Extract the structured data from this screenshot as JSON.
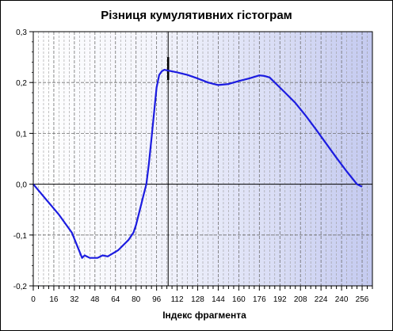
{
  "chart_data": {
    "type": "line",
    "title": "Різниця кумулятивних гістограм",
    "xlabel": "Індекс фрагмента",
    "ylabel": "",
    "xlim": [
      0,
      264
    ],
    "ylim": [
      -0.2,
      0.3
    ],
    "x_ticks": [
      "0",
      "16",
      "32",
      "48",
      "64",
      "80",
      "96",
      "112",
      "128",
      "144",
      "160",
      "176",
      "192",
      "208",
      "224",
      "240",
      "256"
    ],
    "x_tick_values": [
      0,
      16,
      32,
      48,
      64,
      80,
      96,
      112,
      128,
      144,
      160,
      176,
      192,
      208,
      224,
      240,
      256
    ],
    "y_ticks": [
      "-0,2",
      "-0,1",
      "0,0",
      "0,1",
      "0,2",
      "0,3"
    ],
    "y_tick_values": [
      -0.2,
      -0.1,
      0.0,
      0.1,
      0.2,
      0.3
    ],
    "grid": true,
    "minor_grid_step": 4,
    "marker_x": 105,
    "marker_y_range": [
      0.205,
      0.25
    ],
    "series": [
      {
        "color": "#1c1ce0",
        "x": [
          0,
          10,
          20,
          30,
          38,
          40,
          44,
          50,
          54,
          58,
          62,
          66,
          70,
          74,
          78,
          80,
          84,
          86,
          88,
          90,
          92,
          94,
          96,
          98,
          100,
          102,
          104,
          108,
          112,
          120,
          128,
          136,
          144,
          152,
          160,
          168,
          176,
          180,
          184,
          190,
          196,
          204,
          212,
          220,
          228,
          236,
          244,
          252,
          256
        ],
        "y": [
          0.0,
          -0.03,
          -0.06,
          -0.095,
          -0.145,
          -0.14,
          -0.145,
          -0.145,
          -0.14,
          -0.142,
          -0.136,
          -0.13,
          -0.12,
          -0.11,
          -0.095,
          -0.08,
          -0.04,
          -0.02,
          0.0,
          0.04,
          0.09,
          0.14,
          0.19,
          0.215,
          0.222,
          0.225,
          0.224,
          0.222,
          0.22,
          0.215,
          0.208,
          0.2,
          0.195,
          0.197,
          0.203,
          0.208,
          0.214,
          0.213,
          0.21,
          0.195,
          0.18,
          0.16,
          0.135,
          0.108,
          0.08,
          0.052,
          0.025,
          0.0,
          -0.005
        ]
      }
    ]
  }
}
